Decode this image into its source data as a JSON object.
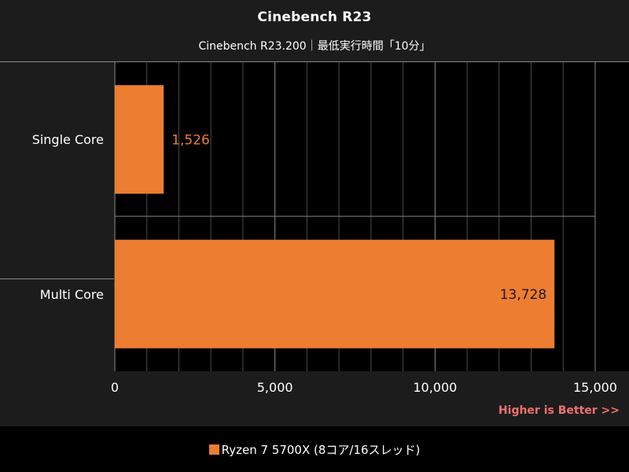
{
  "chart_data": {
    "type": "bar",
    "orientation": "horizontal",
    "title": "Cinebench R23",
    "subtitle": "Cinebench R23.200｜最低実行時間「10分」",
    "categories": [
      "Single Core",
      "Multi Core"
    ],
    "series": [
      {
        "name": "Ryzen 7 5700X (8コア/16スレッド)",
        "values": [
          1526,
          13728
        ],
        "labels": [
          "1,526",
          "13,728"
        ],
        "color": "#ed7d31"
      }
    ],
    "xlim": [
      0,
      15000
    ],
    "xticks": [
      0,
      5000,
      10000,
      15000
    ],
    "xtick_labels": [
      "0",
      "5,000",
      "10,000",
      "15,000"
    ],
    "grid": true,
    "legend": "bottom",
    "annotation": "Higher is Better >>"
  },
  "colors": {
    "bar": "#ed7d31",
    "annotation": "#f07070",
    "label_outside": "#ed7d31",
    "label_inside": "#1a1a1a"
  }
}
